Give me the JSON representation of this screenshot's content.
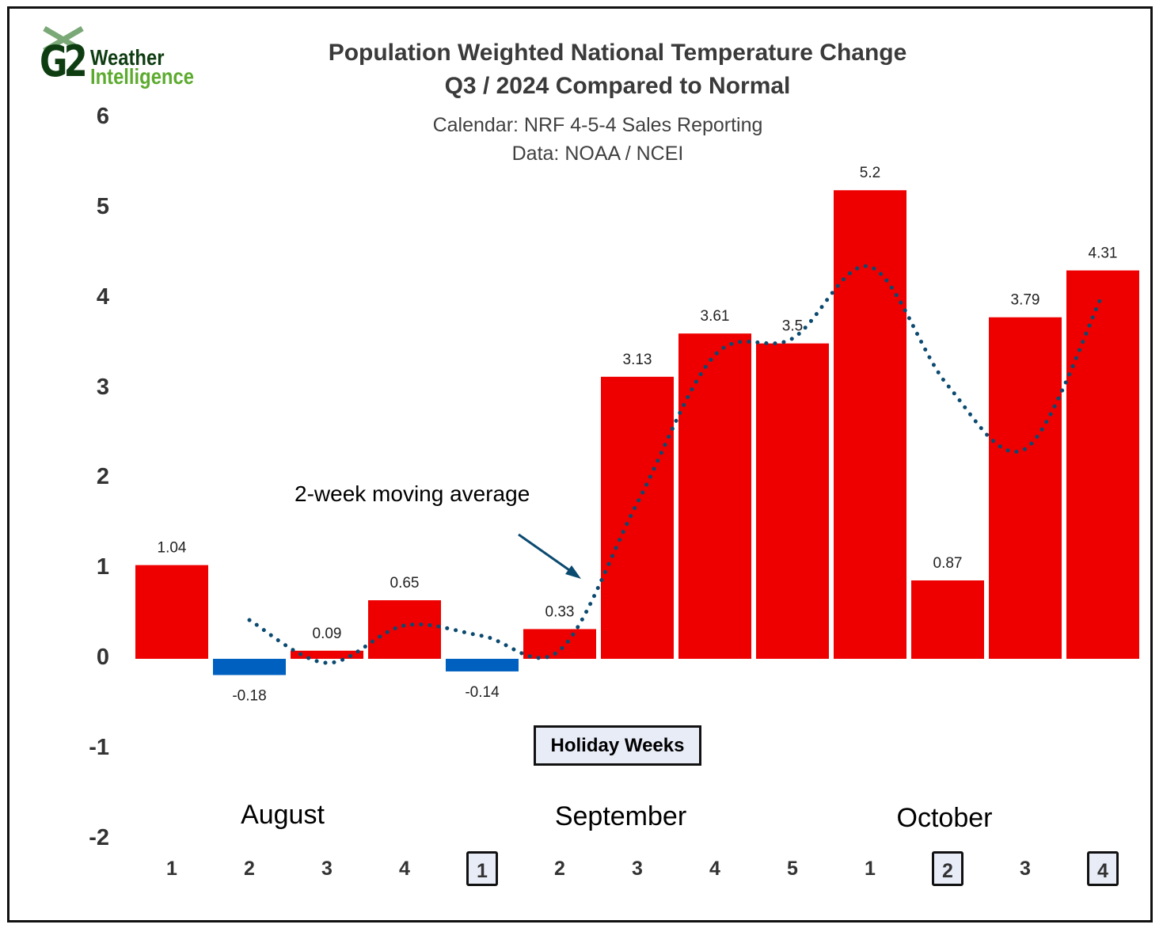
{
  "logo": {
    "top": "Weather",
    "bottom": "Intelligence",
    "mark": "G2",
    "colors": {
      "dark": "#0f3d12",
      "green": "#5cab2f"
    }
  },
  "chart_data": {
    "type": "bar",
    "title": "Population Weighted National Temperature Change",
    "title_line2": "Q3 / 2024 Compared to Normal",
    "subtitle1": "Calendar: NRF 4-5-4 Sales Reporting",
    "subtitle2": "Data: NOAA / NCEI",
    "ylim": [
      -2,
      6
    ],
    "yticks": [
      6,
      5,
      4,
      3,
      2,
      1,
      0,
      -1,
      -2
    ],
    "categories": [
      "1",
      "2",
      "3",
      "4",
      "1",
      "2",
      "3",
      "4",
      "5",
      "1",
      "2",
      "3",
      "4"
    ],
    "holiday_weeks": [
      4,
      10,
      12
    ],
    "months": [
      "August",
      "September",
      "October"
    ],
    "values": [
      1.04,
      -0.18,
      0.09,
      0.65,
      -0.14,
      0.33,
      3.13,
      3.61,
      3.5,
      5.2,
      0.87,
      3.79,
      4.31
    ],
    "data_labels": [
      "1.04",
      "-0.18",
      "0.09",
      "0.65",
      "-0.14",
      "0.33",
      "3.13",
      "3.61",
      "3.5",
      "5.2",
      "0.87",
      "3.79",
      "4.31"
    ],
    "positive_color": "#ee0000",
    "negative_color": "#0060c0",
    "moving_average": {
      "name": "2-week moving average",
      "period": 2,
      "color": "#0b4a70"
    },
    "legend_label": "Holiday Weeks",
    "annotation": "2-week moving average"
  }
}
